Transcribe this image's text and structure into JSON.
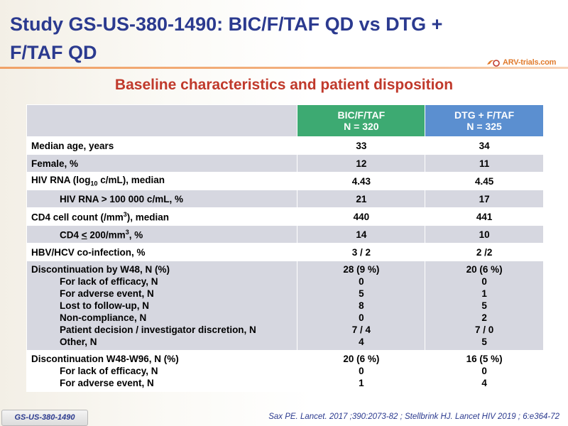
{
  "title": "Study GS-US-380-1490: BIC/F/TAF QD vs DTG + F/TAF QD",
  "logo_text": "ARV-trials.com",
  "subtitle": "Baseline characteristics and patient disposition",
  "columns": {
    "bic": {
      "name": "BIC/F/TAF",
      "n": "N = 320"
    },
    "dtg": {
      "name": "DTG + F/TAF",
      "n": "N = 325"
    }
  },
  "rows": [
    {
      "label": "Median age, years",
      "bic": "33",
      "dtg": "34"
    },
    {
      "label": "Female, %",
      "bic": "12",
      "dtg": "11"
    },
    {
      "label_pre": "HIV RNA (log",
      "label_sub": "10",
      "label_post": " c/mL), median",
      "bic": "4.43",
      "dtg": "4.45"
    },
    {
      "label": "HIV RNA > 100 000 c/mL, %",
      "bic": "21",
      "dtg": "17"
    },
    {
      "label_pre": "CD4 cell count (/mm",
      "label_sup": "3",
      "label_post": "), median",
      "bic": "440",
      "dtg": "441"
    },
    {
      "label_pre": "CD4 ",
      "label_u": "<",
      "label_mid": " 200/mm",
      "label_sup": "3",
      "label_post": ", %",
      "bic": "14",
      "dtg": "10"
    },
    {
      "label": "HBV/HCV co-infection, %",
      "bic": "3 / 2",
      "dtg": "2  /2"
    }
  ],
  "disc48": {
    "header": {
      "label": "Discontinuation by W48, N (%)",
      "bic": "28 (9 %)",
      "dtg": "20 (6 %)"
    },
    "items": [
      {
        "label": "For lack of efficacy, N",
        "bic": "0",
        "dtg": "0"
      },
      {
        "label": "For adverse event, N",
        "bic": "5",
        "dtg": "1"
      },
      {
        "label": "Lost to follow-up, N",
        "bic": "8",
        "dtg": "5"
      },
      {
        "label": "Non-compliance, N",
        "bic": "0",
        "dtg": "2"
      },
      {
        "label": "Patient decision / investigator discretion, N",
        "bic": "7 / 4",
        "dtg": "7 / 0"
      },
      {
        "label": "Other, N",
        "bic": "4",
        "dtg": "5"
      }
    ]
  },
  "disc96": {
    "header": {
      "label": "Discontinuation W48-W96, N (%)",
      "bic": "20 (6 %)",
      "dtg": "16 (5 %)"
    },
    "items": [
      {
        "label": "For lack of efficacy, N",
        "bic": "0",
        "dtg": "0"
      },
      {
        "label": "For adverse event, N",
        "bic": "1",
        "dtg": "4"
      }
    ]
  },
  "footer": {
    "study_tag": "GS-US-380-1490",
    "reference": "Sax PE. Lancet. 2017 ;390:2073-82 ; Stellbrink HJ. Lancet HIV 2019 ; 6:e364-72"
  }
}
